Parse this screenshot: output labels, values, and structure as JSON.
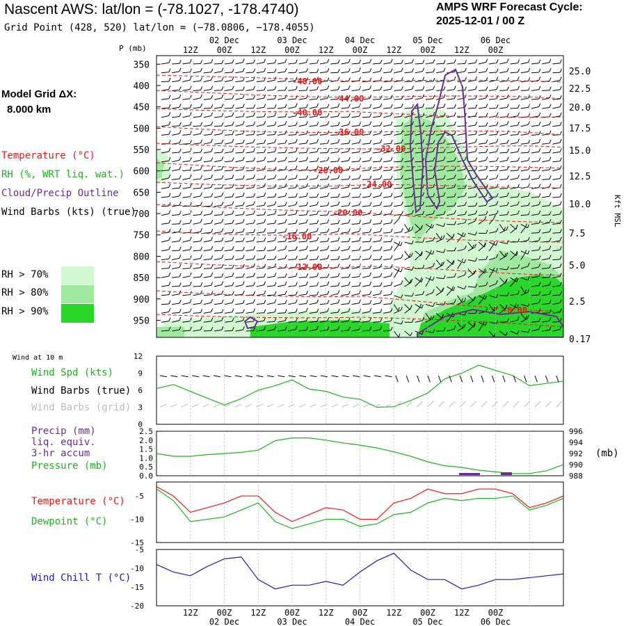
{
  "header": {
    "title": "Nascent AWS:  lat/lon = (-78.1027, -178.4740)",
    "grid_point": "Grid Point (428, 520) lat/lon = (−78.0806, −178.4055)",
    "cycle_line1": "AMPS WRF Forecast Cycle:",
    "cycle_line2": "2025-12-01 / 00  Z"
  },
  "model_grid": {
    "line1": "Model Grid ΔX:",
    "line2": "8.000 km"
  },
  "upper_panel": {
    "p_label": "P (mb)",
    "right_axis_label": "Kft MSL",
    "legend": {
      "temperature": "Temperature (°C)",
      "rh": "RH (%, WRT liq. wat.)",
      "cloud": "Cloud/Precip Outline",
      "wind": "Wind Barbs (kts) (true)"
    },
    "rh_legend": [
      {
        "label": "RH > 70%",
        "color": "#d2f8d2"
      },
      {
        "label": "RH > 80%",
        "color": "#a0e8a0"
      },
      {
        "label": "RH > 90%",
        "color": "#2bd62b"
      }
    ],
    "pressure_ticks": [
      "350",
      "400",
      "450",
      "500",
      "550",
      "600",
      "650",
      "700",
      "750",
      "800",
      "850",
      "900",
      "950"
    ],
    "height_ticks": [
      "25.0",
      "22.5",
      "20.0",
      "17.5",
      "15.0",
      "12.5",
      "10.0",
      "7.5",
      "5.0",
      "2.5",
      "0.17"
    ],
    "isotherm_labels": [
      "-48.00",
      "-44.00",
      "-40.00",
      "-36.00",
      "-32.00",
      "-28.00",
      "-24.00",
      "-20.00",
      "-16.00",
      "-12.00",
      "-8.00"
    ]
  },
  "time_axis": {
    "hour_labels": [
      "12Z",
      "00Z",
      "12Z",
      "00Z",
      "12Z",
      "00Z",
      "12Z",
      "00Z",
      "12Z",
      "00Z"
    ],
    "day_labels": [
      "02 Dec",
      "03 Dec",
      "04 Dec",
      "05 Dec",
      "06 Dec"
    ]
  },
  "wind_panel": {
    "title": "Wind at 10 m",
    "spd": "Wind Spd (kts)",
    "barbs_true": "Wind Barbs (true)",
    "barbs_grid": "Wind Barbs (grid)",
    "y_ticks": [
      "12",
      "9",
      "6",
      "3",
      "0"
    ]
  },
  "precip_panel": {
    "precip": "Precip (mm)",
    "liq": "liq. equiv.",
    "accum": "3-hr accum",
    "pressure": "Pressure (mb)",
    "unit": "(mb)",
    "left_ticks": [
      "2.5",
      "2.0",
      "1.5",
      "1.0",
      "0.5",
      "0.0"
    ],
    "right_ticks": [
      "996",
      "994",
      "992",
      "990",
      "988"
    ]
  },
  "temp_panel": {
    "temperature": "Temperature (°C)",
    "dewpoint": "Dewpoint (°C)",
    "y_ticks": [
      "-5",
      "-10",
      "-15"
    ]
  },
  "chill_panel": {
    "label": "Wind Chill T (°C)",
    "y_ticks": [
      "-5",
      "-10",
      "-15",
      "-20"
    ]
  },
  "colors": {
    "temperature": "#e81818",
    "rh": "#1fb01f",
    "cloud": "#6a2c91",
    "wind_true": "#000000",
    "wind_grid": "#bdbdbd",
    "pressure": "#1fb01f",
    "dewpoint": "#1fb01f",
    "wind_chill": "#1c1cb0"
  },
  "chart_data": [
    {
      "type": "line",
      "panel": "wind speed at 10 m",
      "ylabel": "Wind Spd (kts)",
      "ylim": [
        0,
        12
      ],
      "x_hours": [
        0,
        6,
        12,
        18,
        24,
        30,
        36,
        42,
        48,
        54,
        60,
        66,
        72,
        78,
        84,
        90,
        96,
        102,
        108,
        114,
        120,
        126,
        132,
        138,
        144
      ],
      "series": [
        {
          "name": "Wind Spd (kts)",
          "values": [
            6.3,
            7.0,
            5.8,
            4.6,
            3.4,
            4.5,
            6.0,
            6.8,
            7.8,
            6.2,
            5.8,
            4.8,
            4.4,
            3.0,
            3.1,
            4.2,
            5.5,
            8.0,
            9.0,
            10.4,
            9.5,
            8.6,
            6.8,
            7.2,
            7.6
          ]
        }
      ]
    },
    {
      "type": "line",
      "panel": "pressure",
      "ylabel": "Pressure (mb)",
      "ylim": [
        988,
        996
      ],
      "x_hours": [
        0,
        6,
        12,
        18,
        24,
        30,
        36,
        42,
        48,
        54,
        60,
        66,
        72,
        78,
        84,
        90,
        96,
        102,
        108,
        114,
        120,
        126,
        132,
        138,
        144
      ],
      "series": [
        {
          "name": "Pressure (mb)",
          "values": [
            992.0,
            991.5,
            991.5,
            991.8,
            992.0,
            992.2,
            992.6,
            994.3,
            994.8,
            994.8,
            994.4,
            993.9,
            993.5,
            993.0,
            992.3,
            991.5,
            990.5,
            989.8,
            989.5,
            989.0,
            988.7,
            988.4,
            988.4,
            988.9,
            990.0
          ]
        }
      ]
    },
    {
      "type": "line",
      "panel": "temperature and dewpoint",
      "ylim": [
        -15,
        -2
      ],
      "x_hours": [
        0,
        6,
        12,
        18,
        24,
        30,
        36,
        42,
        48,
        54,
        60,
        66,
        72,
        78,
        84,
        90,
        96,
        102,
        108,
        114,
        120,
        126,
        132,
        138,
        144
      ],
      "series": [
        {
          "name": "Temperature (°C)",
          "values": [
            -3.0,
            -5.0,
            -8.5,
            -7.5,
            -6.5,
            -5.0,
            -5.0,
            -8.5,
            -10.5,
            -9.0,
            -7.5,
            -8.0,
            -10.0,
            -10.0,
            -6.5,
            -5.5,
            -3.5,
            -4.5,
            -4.5,
            -3.5,
            -3.5,
            -4.5,
            -7.5,
            -6.5,
            -5.0
          ]
        },
        {
          "name": "Dewpoint (°C)",
          "values": [
            -3.5,
            -6.0,
            -10.5,
            -10.0,
            -9.5,
            -8.0,
            -6.5,
            -10.5,
            -12.0,
            -11.0,
            -10.0,
            -10.0,
            -11.5,
            -11.0,
            -9.0,
            -8.5,
            -6.5,
            -5.5,
            -6.0,
            -5.5,
            -5.5,
            -5.0,
            -8.0,
            -7.0,
            -5.5
          ]
        }
      ]
    },
    {
      "type": "line",
      "panel": "wind chill",
      "ylabel": "Wind Chill T (°C)",
      "ylim": [
        -20,
        -5
      ],
      "x_hours": [
        0,
        6,
        12,
        18,
        24,
        30,
        36,
        42,
        48,
        54,
        60,
        66,
        72,
        78,
        84,
        90,
        96,
        102,
        108,
        114,
        120,
        126,
        132,
        138,
        144
      ],
      "series": [
        {
          "name": "Wind Chill T (°C)",
          "values": [
            -9.0,
            -11.0,
            -12.0,
            -9.5,
            -7.5,
            -7.0,
            -13.0,
            -15.5,
            -14.5,
            -14.5,
            -13.5,
            -14.5,
            -11.0,
            -8.0,
            -6.0,
            -10.5,
            -13.0,
            -13.0,
            -15.5,
            -14.5,
            -13.0,
            -13.0,
            -12.5,
            -12.0,
            -11.5
          ]
        }
      ]
    }
  ]
}
